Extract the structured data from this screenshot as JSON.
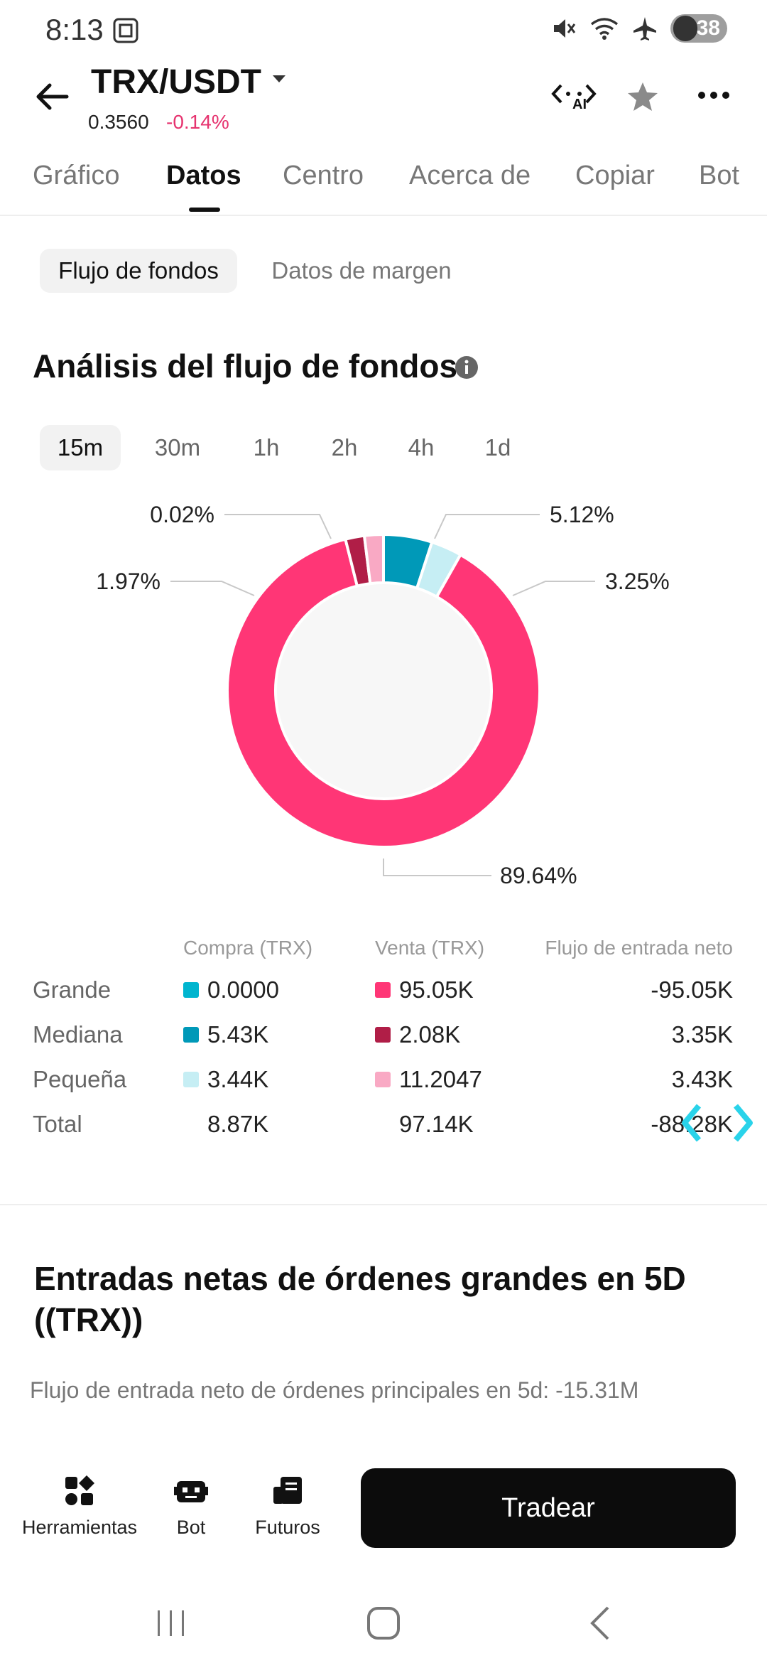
{
  "status_bar": {
    "time": "8:13",
    "battery": "38"
  },
  "header": {
    "pair": "TRX/USDT",
    "price": "0.3560",
    "change": "-0.14%",
    "ai_label": "AI"
  },
  "tabs": [
    {
      "label": "Gráfico"
    },
    {
      "label": "Datos"
    },
    {
      "label": "Centro"
    },
    {
      "label": "Acerca de"
    },
    {
      "label": "Copiar"
    },
    {
      "label": "Bot"
    }
  ],
  "subtabs": [
    {
      "label": "Flujo de fondos"
    },
    {
      "label": "Datos de margen"
    }
  ],
  "analysis": {
    "title": "Análisis del flujo de fondos",
    "intervals": [
      "15m",
      "30m",
      "1h",
      "2h",
      "4h",
      "1d"
    ]
  },
  "colors": {
    "buy_large": "#00b5cf",
    "buy_medium": "#0099b8",
    "buy_small": "#c6eef4",
    "sell_large": "#ff3676",
    "sell_medium": "#b01e47",
    "sell_small": "#f9a9c4"
  },
  "chart_data": {
    "type": "pie",
    "values": [
      5.12,
      3.25,
      89.64,
      1.97,
      0.02
    ],
    "labels": [
      "5.12%",
      "3.25%",
      "89.64%",
      "1.97%",
      "0.02%"
    ],
    "slice_colors": [
      "#0099b8",
      "#c6eef4",
      "#ff3676",
      "#b01e47",
      "#f9a9c4"
    ]
  },
  "table": {
    "headers": {
      "buy": "Compra (TRX)",
      "sell": "Venta (TRX)",
      "net": "Flujo de entrada neto"
    },
    "rows": [
      {
        "label": "Grande",
        "buy": "0.0000",
        "sell": "95.05K",
        "net": "-95.05K"
      },
      {
        "label": "Mediana",
        "buy": "5.43K",
        "sell": "2.08K",
        "net": "3.35K"
      },
      {
        "label": "Pequeña",
        "buy": "3.44K",
        "sell": "11.2047",
        "net": "3.43K"
      },
      {
        "label": "Total",
        "buy": "8.87K",
        "sell": "97.14K",
        "net": "-88.28K"
      }
    ]
  },
  "large_orders": {
    "title": "Entradas netas de órdenes grandes en 5D ((TRX))",
    "summary": "Flujo de entrada neto de órdenes principales en 5d: -15.31M"
  },
  "bottom_bar": {
    "tools": "Herramientas",
    "bot": "Bot",
    "futures": "Futuros",
    "trade": "Tradear"
  }
}
